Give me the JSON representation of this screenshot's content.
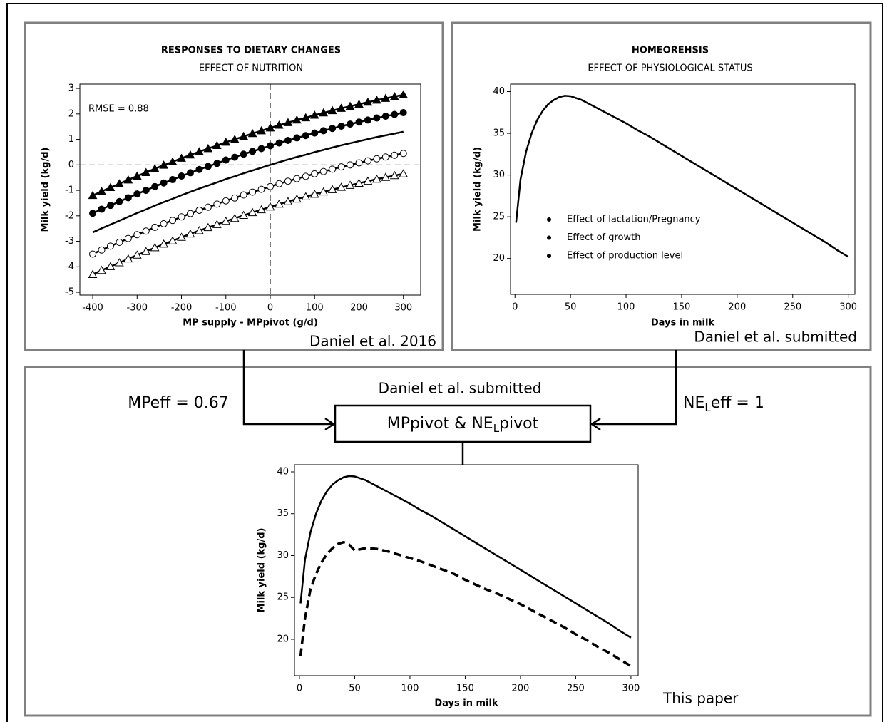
{
  "chart_data": [
    {
      "type": "line",
      "title": "RESPONSES TO DIETARY CHANGES",
      "subtitle": "EFFECT OF NUTRITION",
      "xlabel": "MP supply - MPpivot (g/d)",
      "ylabel": "Milk yield (kg/d)",
      "annotation": "RMSE = 0.88",
      "xlim": [
        -429,
        339
      ],
      "ylim": [
        -5.11,
        3.17
      ],
      "xticks": [
        -400,
        -300,
        -200,
        -100,
        0,
        100,
        200,
        300
      ],
      "yticks": [
        -5,
        -4,
        -3,
        -2,
        -1,
        0,
        1,
        2,
        3
      ],
      "reflines": {
        "x": 0,
        "y": 0
      },
      "x": [
        -400,
        -380,
        -360,
        -340,
        -320,
        -300,
        -280,
        -260,
        -240,
        -220,
        -200,
        -180,
        -160,
        -140,
        -120,
        -100,
        -80,
        -60,
        -40,
        -20,
        0,
        20,
        40,
        60,
        80,
        100,
        120,
        140,
        160,
        180,
        200,
        220,
        240,
        260,
        280,
        300
      ],
      "series": [
        {
          "color": "#000000",
          "marker": "triangle",
          "filled": true,
          "values": [
            -1.2,
            -1.04,
            -0.89,
            -0.74,
            -0.59,
            -0.44,
            -0.3,
            -0.15,
            -0.01,
            0.12,
            0.26,
            0.39,
            0.52,
            0.64,
            0.76,
            0.89,
            1.0,
            1.12,
            1.23,
            1.34,
            1.45,
            1.56,
            1.66,
            1.76,
            1.85,
            1.95,
            2.04,
            2.13,
            2.22,
            2.3,
            2.38,
            2.46,
            2.54,
            2.61,
            2.68,
            2.75
          ]
        },
        {
          "color": "#000000",
          "marker": "circle",
          "filled": true,
          "values": [
            -1.9,
            -1.74,
            -1.59,
            -1.44,
            -1.29,
            -1.14,
            -1.0,
            -0.85,
            -0.71,
            -0.58,
            -0.44,
            -0.31,
            -0.18,
            -0.06,
            0.06,
            0.19,
            0.3,
            0.42,
            0.53,
            0.64,
            0.75,
            0.86,
            0.96,
            1.06,
            1.15,
            1.25,
            1.34,
            1.43,
            1.52,
            1.6,
            1.68,
            1.76,
            1.84,
            1.91,
            1.98,
            2.05
          ]
        },
        {
          "color": "#000000",
          "marker": "none",
          "filled": false,
          "values": [
            -2.65,
            -2.49,
            -2.34,
            -2.19,
            -2.04,
            -1.89,
            -1.75,
            -1.6,
            -1.46,
            -1.33,
            -1.19,
            -1.06,
            -0.93,
            -0.81,
            -0.69,
            -0.56,
            -0.45,
            -0.33,
            -0.22,
            -0.11,
            0,
            0.11,
            0.21,
            0.31,
            0.4,
            0.5,
            0.59,
            0.68,
            0.77,
            0.85,
            0.93,
            1.01,
            1.09,
            1.16,
            1.23,
            1.3
          ]
        },
        {
          "color": "#000000",
          "marker": "circle",
          "filled": false,
          "values": [
            -3.5,
            -3.34,
            -3.19,
            -3.04,
            -2.89,
            -2.74,
            -2.6,
            -2.45,
            -2.31,
            -2.18,
            -2.04,
            -1.91,
            -1.78,
            -1.66,
            -1.54,
            -1.41,
            -1.3,
            -1.18,
            -1.07,
            -0.96,
            -0.85,
            -0.74,
            -0.64,
            -0.54,
            -0.45,
            -0.35,
            -0.26,
            -0.17,
            -0.08,
            0.0,
            0.08,
            0.16,
            0.24,
            0.31,
            0.38,
            0.45
          ]
        },
        {
          "color": "#000000",
          "marker": "triangle",
          "filled": false,
          "values": [
            -4.3,
            -4.14,
            -3.99,
            -3.84,
            -3.69,
            -3.54,
            -3.4,
            -3.25,
            -3.11,
            -2.98,
            -2.84,
            -2.71,
            -2.58,
            -2.46,
            -2.34,
            -2.21,
            -2.1,
            -1.98,
            -1.87,
            -1.76,
            -1.65,
            -1.54,
            -1.44,
            -1.34,
            -1.25,
            -1.15,
            -1.06,
            -0.97,
            -0.88,
            -0.8,
            -0.72,
            -0.64,
            -0.56,
            -0.49,
            -0.42,
            -0.35
          ]
        }
      ]
    },
    {
      "type": "line",
      "title": "HOMEOREHSIS",
      "subtitle": "EFFECT OF PHYSIOLOGICAL STATUS",
      "xlabel": "Days in milk",
      "ylabel": "Milk yield (kg/d)",
      "bullets": [
        "Effect of lactation/Pregnancy",
        "Effect of growth",
        "Effect of production level"
      ],
      "xlim": [
        -4,
        306
      ],
      "ylim": [
        15.7,
        40.9
      ],
      "xticks": [
        0,
        50,
        100,
        150,
        200,
        250,
        300
      ],
      "yticks": [
        20,
        25,
        30,
        35,
        40
      ],
      "x": [
        1,
        5,
        10,
        15,
        20,
        25,
        30,
        35,
        40,
        45,
        50,
        60,
        70,
        80,
        90,
        100,
        110,
        120,
        130,
        140,
        150,
        160,
        170,
        180,
        190,
        200,
        210,
        220,
        230,
        240,
        250,
        260,
        270,
        280,
        290,
        300
      ],
      "series": [
        {
          "color": "#000000",
          "dash": false,
          "values": [
            24.3,
            29.5,
            32.8,
            35.0,
            36.6,
            37.7,
            38.5,
            39.0,
            39.35,
            39.5,
            39.45,
            39.0,
            38.3,
            37.6,
            36.9,
            36.2,
            35.4,
            34.7,
            33.9,
            33.1,
            32.3,
            31.5,
            30.7,
            29.9,
            29.1,
            28.3,
            27.5,
            26.7,
            25.9,
            25.1,
            24.3,
            23.5,
            22.7,
            21.9,
            21.0,
            20.2
          ]
        }
      ]
    },
    {
      "type": "line",
      "xlabel": "Days in milk",
      "ylabel": "Milk yield (kg/d)",
      "xlim": [
        -4.5,
        306.5
      ],
      "ylim": [
        15.66,
        40.85
      ],
      "xticks": [
        0,
        50,
        100,
        150,
        200,
        250,
        300
      ],
      "yticks": [
        20,
        25,
        30,
        35,
        40
      ],
      "x": [
        1,
        5,
        10,
        15,
        20,
        25,
        30,
        35,
        40,
        45,
        50,
        60,
        70,
        80,
        90,
        100,
        110,
        120,
        130,
        140,
        150,
        160,
        170,
        180,
        190,
        200,
        210,
        220,
        230,
        240,
        250,
        260,
        270,
        280,
        290,
        300
      ],
      "series": [
        {
          "color": "#000000",
          "dash": false,
          "values": [
            24.3,
            29.5,
            32.8,
            35.0,
            36.6,
            37.7,
            38.5,
            39.0,
            39.35,
            39.5,
            39.45,
            39.0,
            38.3,
            37.6,
            36.9,
            36.2,
            35.4,
            34.7,
            33.9,
            33.1,
            32.3,
            31.5,
            30.7,
            29.9,
            29.1,
            28.3,
            27.5,
            26.7,
            25.9,
            25.1,
            24.3,
            23.5,
            22.7,
            21.9,
            21.0,
            20.2
          ]
        },
        {
          "color": "#000000",
          "dash": true,
          "values": [
            18.0,
            22.5,
            26.0,
            27.8,
            29.2,
            30.2,
            30.9,
            31.4,
            31.6,
            31.3,
            30.6,
            30.9,
            30.8,
            30.5,
            30.1,
            29.7,
            29.3,
            28.8,
            28.3,
            27.8,
            27.1,
            26.5,
            25.9,
            25.4,
            24.8,
            24.2,
            23.5,
            22.8,
            22.1,
            21.4,
            20.6,
            19.9,
            19.1,
            18.4,
            17.6,
            16.8
          ]
        }
      ]
    }
  ],
  "citations": [
    "Daniel et al. 2016",
    "Daniel et al. submitted",
    "This paper"
  ],
  "flow": {
    "source": "Daniel et al. submitted",
    "mp_eff": "MPeff = 0.67",
    "nel_eff": {
      "main": "NE",
      "sub": "L",
      "rest": "eff = 1"
    },
    "pivot": {
      "main": "MPpivot & NE",
      "sub": "L",
      "rest": "pivot"
    }
  }
}
